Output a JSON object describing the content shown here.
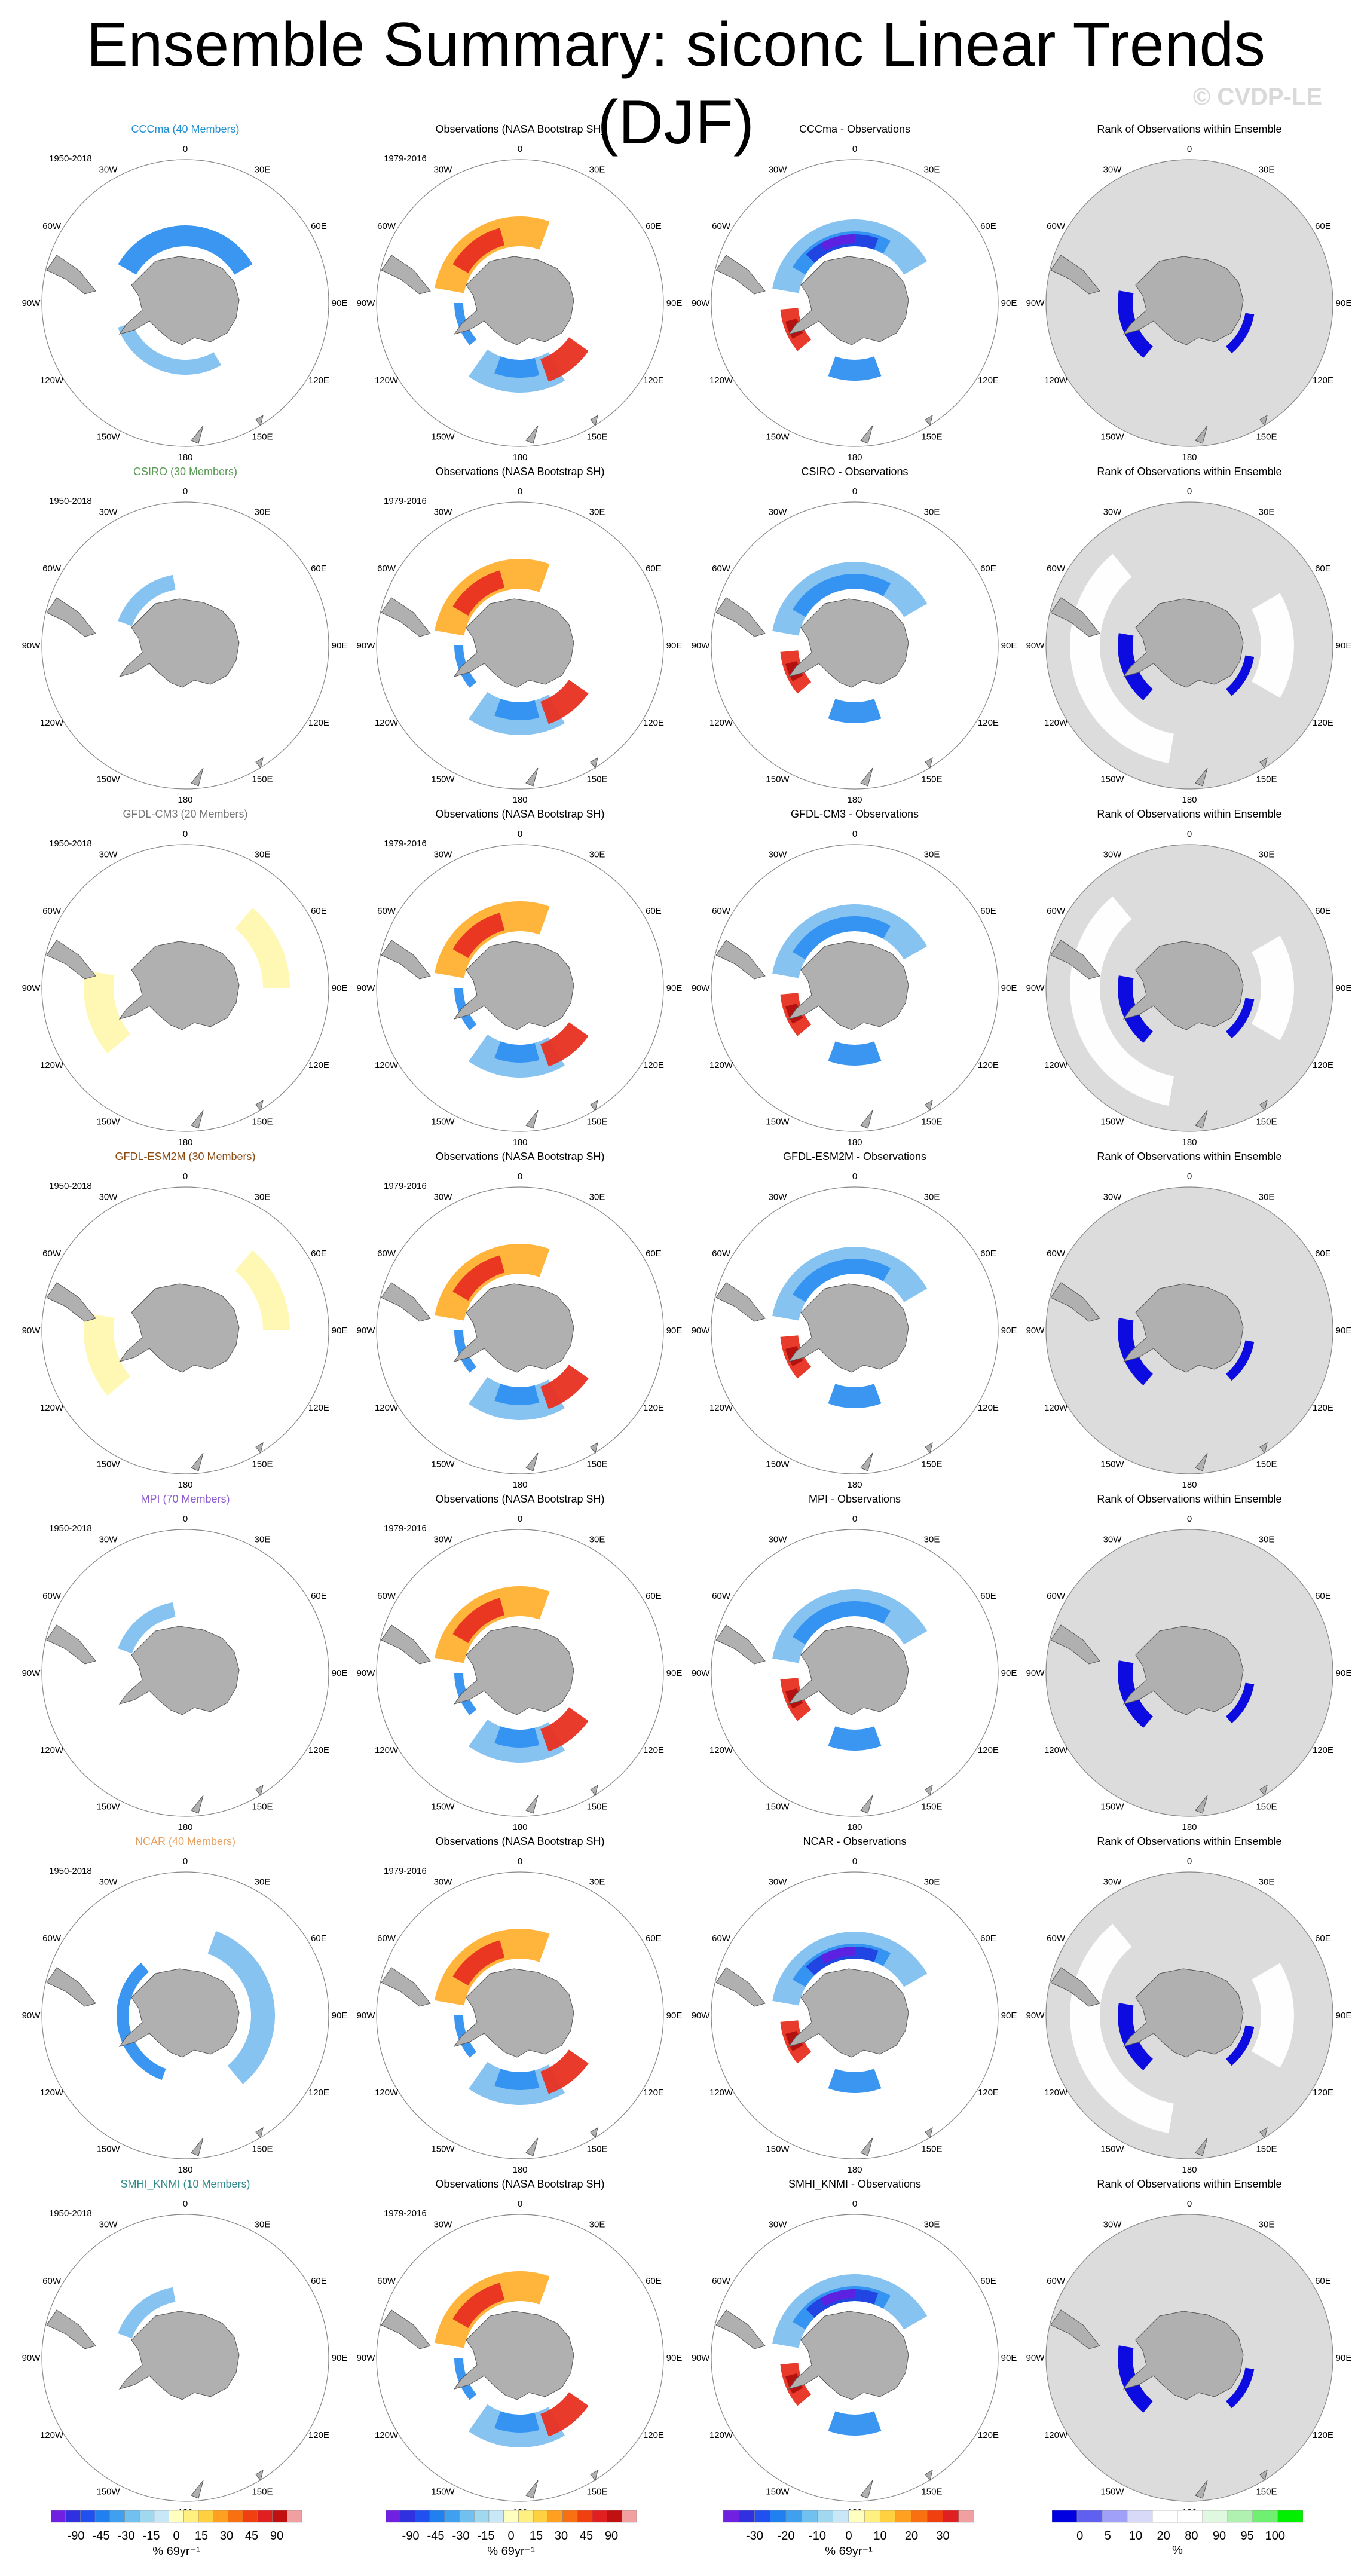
{
  "title": "Ensemble Summary: siconc Linear Trends (DJF)",
  "watermark": "© CVDP-LE",
  "colors": {
    "land": "#b0b0b0",
    "ring": "#888888",
    "rank_bg": "#dcdcdc"
  },
  "map_labels": {
    "lon_0": "0",
    "lon_30e": "30E",
    "lon_60e": "60E",
    "lon_90e": "90E",
    "lon_120e": "120E",
    "lon_150e": "150E",
    "lon_180": "180",
    "lon_150w": "150W",
    "lon_120w": "120W",
    "lon_90w": "90W",
    "lon_60w": "60W",
    "lon_30w": "30W"
  },
  "model_period": "1950-2018",
  "obs_period": "1979-2016",
  "obs_title": "Observations (NASA Bootstrap SH)",
  "rank_title": "Rank of Observations within Ensemble",
  "rows": [
    {
      "model": "CCCma (40 Members)",
      "diff": "CCCma - Observations",
      "color": "#1f8fd0",
      "style": "strong_blue",
      "diffstyle": "deep",
      "rankstyle": "green_full"
    },
    {
      "model": "CSIRO (30 Members)",
      "diff": "CSIRO - Observations",
      "color": "#5a9a55",
      "style": "light_blue",
      "diffstyle": "mixed",
      "rankstyle": "green_white"
    },
    {
      "model": "GFDL-CM3 (20 Members)",
      "diff": "GFDL-CM3 - Observations",
      "color": "#777777",
      "style": "light_yellow",
      "diffstyle": "mixed",
      "rankstyle": "green_white"
    },
    {
      "model": "GFDL-ESM2M (30 Members)",
      "diff": "GFDL-ESM2M - Observations",
      "color": "#8a4a12",
      "style": "light_yellow",
      "diffstyle": "mixed",
      "rankstyle": "green_full"
    },
    {
      "model": "MPI (70 Members)",
      "diff": "MPI - Observations",
      "color": "#8a5ad0",
      "style": "light_blue",
      "diffstyle": "mixed",
      "rankstyle": "green_full"
    },
    {
      "model": "NCAR (40 Members)",
      "diff": "NCAR - Observations",
      "color": "#e8a060",
      "style": "wide_blue",
      "diffstyle": "deep",
      "rankstyle": "green_white"
    },
    {
      "model": "SMHI_KNMI (10 Members)",
      "diff": "SMHI_KNMI - Observations",
      "color": "#2f8a8a",
      "style": "light_blue",
      "diffstyle": "deep",
      "rankstyle": "green_full"
    }
  ],
  "colorbars": [
    {
      "id": "trend1",
      "colors": [
        "#7020e0",
        "#3030e0",
        "#2050f0",
        "#2080f0",
        "#40a0f0",
        "#70c0f0",
        "#a0d8f0",
        "#c8e8f8",
        "#ffffc0",
        "#fff080",
        "#ffd040",
        "#ffa020",
        "#f87010",
        "#f04010",
        "#e02020",
        "#c01010",
        "#f0a0a0"
      ],
      "ticks": [
        "-90",
        "-45",
        "-30",
        "-15",
        "0",
        "15",
        "30",
        "45",
        "90"
      ],
      "unit": "% 69yr⁻¹"
    },
    {
      "id": "trend2",
      "colors": [
        "#7020e0",
        "#3030e0",
        "#2050f0",
        "#2080f0",
        "#40a0f0",
        "#70c0f0",
        "#a0d8f0",
        "#c8e8f8",
        "#ffffc0",
        "#fff080",
        "#ffd040",
        "#ffa020",
        "#f87010",
        "#f04010",
        "#e02020",
        "#c01010",
        "#f0a0a0"
      ],
      "ticks": [
        "-90",
        "-45",
        "-30",
        "-15",
        "0",
        "15",
        "30",
        "45",
        "90"
      ],
      "unit": "% 69yr⁻¹"
    },
    {
      "id": "diff",
      "colors": [
        "#7020e0",
        "#3030e0",
        "#2050f0",
        "#2080f0",
        "#40a0f0",
        "#70c0f0",
        "#a0d8f0",
        "#c8e8f8",
        "#ffffc0",
        "#fff080",
        "#ffd040",
        "#ffa020",
        "#f87010",
        "#f04010",
        "#e02020",
        "#f0a0a0"
      ],
      "ticks": [
        "-30",
        "-20",
        "-10",
        "0",
        "10",
        "20",
        "30"
      ],
      "unit": "% 69yr⁻¹"
    },
    {
      "id": "rank",
      "colors": [
        "#0000e0",
        "#6060f0",
        "#a0a0f8",
        "#d8d8f8",
        "#ffffff",
        "#ffffff",
        "#e0f8e0",
        "#b0f0b0",
        "#70f070",
        "#00f000"
      ],
      "ticks": [
        "0",
        "5",
        "10",
        "20",
        "80",
        "90",
        "95",
        "100"
      ],
      "unit": "%"
    }
  ]
}
